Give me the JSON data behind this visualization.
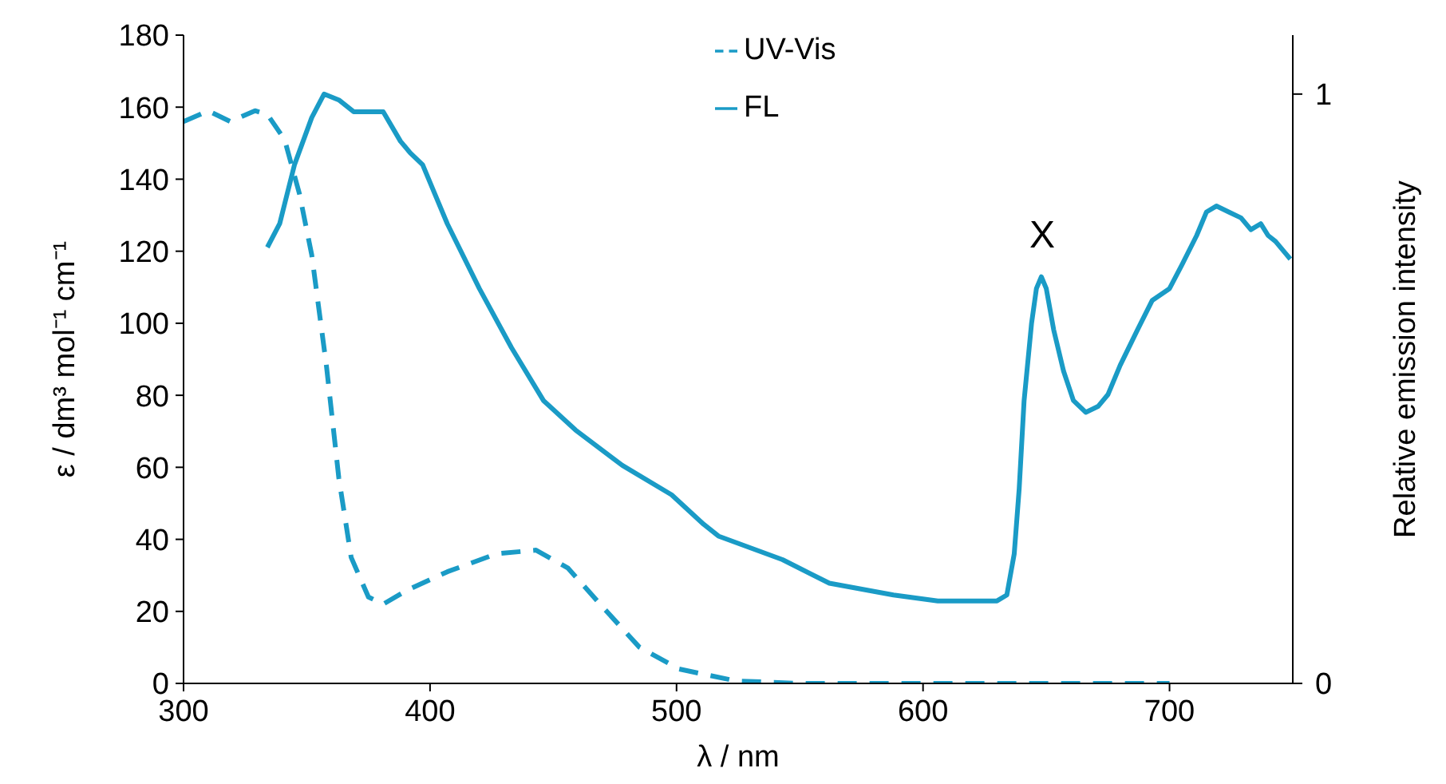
{
  "chart_data": {
    "type": "line",
    "xlabel": "λ / nm",
    "ylabel": "ε / dm³ mol⁻¹ cm⁻¹",
    "y2label": "Relative emission intensity",
    "xlim": [
      300,
      750
    ],
    "xticks": [
      300,
      400,
      500,
      600,
      700
    ],
    "ylim": [
      0,
      180
    ],
    "yticks": [
      0,
      20,
      40,
      60,
      80,
      100,
      120,
      140,
      160,
      180
    ],
    "y2lim": [
      0,
      1.1
    ],
    "y2ticks": [
      0,
      1
    ],
    "grid": false,
    "legend": "top",
    "marker": "none",
    "annotations": [
      "X"
    ],
    "series": [
      {
        "name": "UV-Vis",
        "color": "#1a9bc6",
        "line_style": "dashed",
        "x": [
          300,
          310,
          319,
          329,
          334,
          341,
          347,
          352,
          358,
          363,
          368,
          375,
          381,
          391,
          407,
          427,
          443,
          456,
          469,
          485,
          501,
          524,
          550,
          600,
          650,
          700
        ],
        "values": [
          156,
          159,
          156,
          159,
          158,
          151,
          136,
          119,
          88,
          57,
          35,
          24,
          22,
          26,
          31,
          36,
          37,
          32,
          22,
          10,
          4,
          0.7,
          0,
          0,
          0,
          0
        ]
      },
      {
        "name": "FL",
        "color": "#1a9bc6",
        "line_style": "solid",
        "axis": "y2",
        "x": [
          334,
          339,
          345,
          352,
          357,
          363,
          369,
          381,
          388,
          392,
          397,
          407,
          420,
          433,
          446,
          459,
          478,
          498,
          511,
          517,
          543,
          562,
          588,
          606,
          613,
          630,
          634,
          637,
          639,
          641,
          644,
          646,
          648,
          650,
          653,
          657,
          661,
          666,
          671,
          675,
          680,
          687,
          693,
          700,
          705,
          711,
          715,
          719,
          724,
          729,
          733,
          737,
          740,
          743,
          747,
          749
        ],
        "values": [
          0.74,
          0.78,
          0.88,
          0.96,
          1.0,
          0.99,
          0.97,
          0.97,
          0.92,
          0.9,
          0.88,
          0.78,
          0.67,
          0.57,
          0.48,
          0.43,
          0.37,
          0.32,
          0.27,
          0.25,
          0.21,
          0.17,
          0.15,
          0.14,
          0.14,
          0.14,
          0.15,
          0.22,
          0.33,
          0.48,
          0.61,
          0.67,
          0.69,
          0.67,
          0.6,
          0.53,
          0.48,
          0.46,
          0.47,
          0.49,
          0.54,
          0.6,
          0.65,
          0.67,
          0.71,
          0.76,
          0.8,
          0.81,
          0.8,
          0.79,
          0.77,
          0.78,
          0.76,
          0.75,
          0.73,
          0.72
        ]
      }
    ]
  }
}
